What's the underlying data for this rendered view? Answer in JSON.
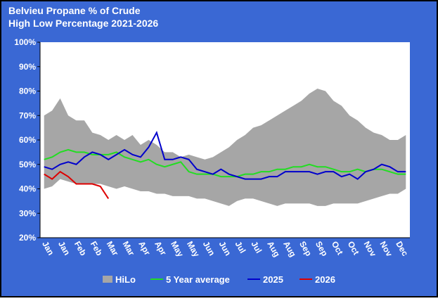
{
  "chart_data": {
    "type": "line",
    "title": "Belvieu Propane % of Crude",
    "subtitle": "High Low Percentage 2021-2026",
    "categories": [
      "Jan",
      null,
      "Jan",
      null,
      "Feb",
      null,
      "Feb",
      null,
      "Mar",
      null,
      "Mar",
      null,
      "Apr",
      null,
      "Apr",
      null,
      "May",
      null,
      "May",
      null,
      "Jun",
      null,
      "Jun",
      null,
      "Jul",
      null,
      "Jul",
      null,
      "Aug",
      null,
      "Aug",
      null,
      "Sep",
      null,
      "Sep",
      null,
      "Oct",
      null,
      "Oct",
      null,
      "Nov",
      null,
      "Nov",
      null,
      "Dec",
      null
    ],
    "ylim": [
      20,
      100
    ],
    "yticks": [
      {
        "value": 20,
        "label": "20%"
      },
      {
        "value": 30,
        "label": "30%"
      },
      {
        "value": 40,
        "label": "40%"
      },
      {
        "value": 50,
        "label": "50%"
      },
      {
        "value": 60,
        "label": "60%"
      },
      {
        "value": 70,
        "label": "70%"
      },
      {
        "value": 80,
        "label": "80%"
      },
      {
        "value": 90,
        "label": "90%"
      },
      {
        "value": 100,
        "label": "100%"
      }
    ],
    "series": [
      {
        "name": "HiLo",
        "color": "#a6a6a6",
        "high": [
          70,
          72,
          77,
          70,
          68,
          68,
          63,
          62,
          60,
          62,
          60,
          62,
          58,
          60,
          58,
          55,
          55,
          53,
          54,
          53,
          52,
          53,
          55,
          57,
          60,
          62,
          65,
          66,
          68,
          70,
          72,
          74,
          76,
          79,
          81,
          80,
          76,
          74,
          70,
          68,
          65,
          63,
          62,
          60,
          60,
          62
        ],
        "low": [
          40,
          41,
          44,
          43,
          42,
          42,
          42,
          42,
          41,
          40,
          41,
          40,
          39,
          39,
          38,
          38,
          37,
          37,
          37,
          36,
          36,
          35,
          34,
          33,
          35,
          36,
          36,
          35,
          34,
          33,
          34,
          34,
          34,
          34,
          33,
          33,
          34,
          34,
          34,
          34,
          35,
          36,
          37,
          38,
          38,
          40
        ]
      },
      {
        "name": "5 Year average",
        "color": "#22dd22",
        "values": [
          52,
          53,
          55,
          56,
          55,
          55,
          54,
          54,
          54,
          55,
          53,
          52,
          51,
          52,
          50,
          49,
          50,
          51,
          47,
          46,
          46,
          46,
          45,
          45,
          45,
          46,
          46,
          47,
          47,
          48,
          48,
          49,
          49,
          50,
          49,
          49,
          48,
          47,
          47,
          48,
          47,
          48,
          48,
          47,
          46,
          46
        ]
      },
      {
        "name": "2025",
        "color": "#0000cc",
        "values": [
          49,
          48,
          50,
          51,
          50,
          53,
          55,
          54,
          52,
          54,
          56,
          54,
          53,
          57,
          63,
          52,
          52,
          53,
          52,
          48,
          47,
          46,
          48,
          46,
          45,
          44,
          44,
          44,
          45,
          45,
          47,
          47,
          47,
          47,
          46,
          47,
          47,
          45,
          46,
          44,
          47,
          48,
          50,
          49,
          47,
          47
        ]
      },
      {
        "name": "2026",
        "color": "#dd0000",
        "values": [
          46,
          44,
          47,
          45,
          42,
          42,
          42,
          41,
          36,
          null,
          null,
          null,
          null,
          null,
          null,
          null,
          null,
          null,
          null,
          null,
          null,
          null,
          null,
          null,
          null,
          null,
          null,
          null,
          null,
          null,
          null,
          null,
          null,
          null,
          null,
          null,
          null,
          null,
          null,
          null,
          null,
          null,
          null,
          null,
          null,
          null
        ]
      }
    ]
  }
}
